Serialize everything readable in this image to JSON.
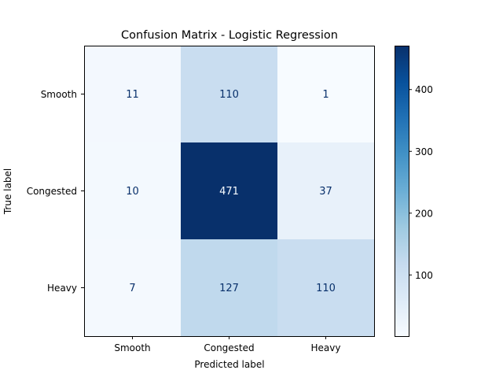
{
  "chart_data": {
    "type": "heatmap",
    "title": "Confusion Matrix - Logistic Regression",
    "xlabel": "Predicted label",
    "ylabel": "True label",
    "x_categories": [
      "Smooth",
      "Congested",
      "Heavy"
    ],
    "y_categories": [
      "Smooth",
      "Congested",
      "Heavy"
    ],
    "values": [
      [
        11,
        110,
        1
      ],
      [
        10,
        471,
        37
      ],
      [
        7,
        127,
        110
      ]
    ],
    "colormap": "Blues",
    "colorbar": {
      "range": [
        1,
        471
      ],
      "ticks": [
        100,
        200,
        300,
        400
      ],
      "tick_labels": [
        "100",
        "200",
        "300",
        "400"
      ]
    },
    "grid": false
  }
}
